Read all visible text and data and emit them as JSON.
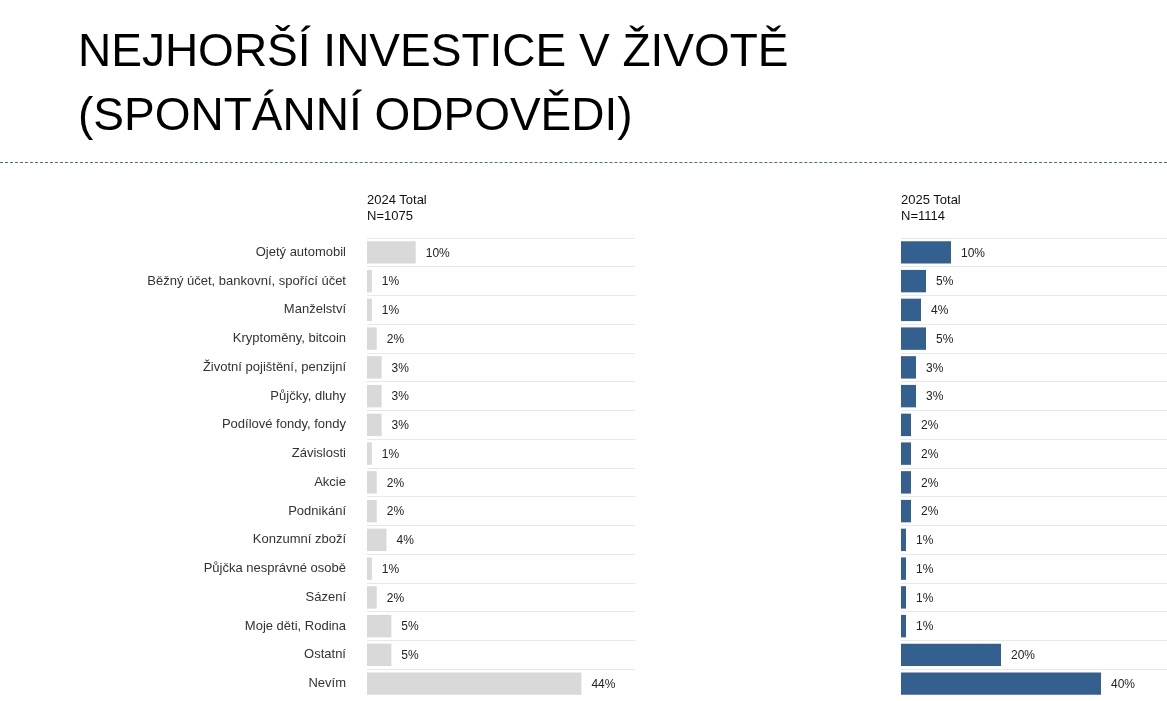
{
  "chart_data": [
    {
      "type": "bar",
      "orientation": "horizontal",
      "title": "NEJHORŠÍ INVESTICE V ŽIVOTĚ (SPONTÁNNÍ ODPOVĚDI)",
      "subtitle": "2024 Total",
      "annotations": [
        "N=1075"
      ],
      "categories": [
        "Ojetý automobil",
        "Běžný účet, bankovní, spořící účet",
        "Manželství",
        "Kryptoměny, bitcoin",
        "Životní pojištění, penzijní",
        "Půjčky, dluhy",
        "Podílové fondy, fondy",
        "Závislosti",
        "Akcie",
        "Podnikání",
        "Konzumní zboží",
        "Půjčka nesprávné osobě",
        "Sázení",
        "Moje děti, Rodina",
        "Ostatní",
        "Nevím"
      ],
      "values": [
        10,
        1,
        1,
        2,
        3,
        3,
        3,
        1,
        2,
        2,
        4,
        1,
        2,
        5,
        5,
        44
      ],
      "value_labels": [
        "10%",
        "1%",
        "1%",
        "2%",
        "3%",
        "3%",
        "3%",
        "1%",
        "2%",
        "2%",
        "4%",
        "1%",
        "2%",
        "5%",
        "5%",
        "44%"
      ],
      "color": "#d9d9d9",
      "xlim": [
        0,
        55
      ],
      "grid": "y",
      "legend": false
    },
    {
      "type": "bar",
      "orientation": "horizontal",
      "subtitle": "2025 Total",
      "annotations": [
        "N=1114"
      ],
      "categories": [
        null,
        null,
        null,
        null,
        null,
        null,
        null,
        null,
        null,
        null,
        null,
        null,
        null,
        null,
        null,
        null
      ],
      "values": [
        10,
        5,
        4,
        5,
        3,
        3,
        2,
        2,
        2,
        2,
        1,
        1,
        1,
        1,
        20,
        40
      ],
      "value_labels": [
        "10%",
        "5%",
        "4%",
        "5%",
        "3%",
        "3%",
        "2%",
        "2%",
        "2%",
        "2%",
        "1%",
        "1%",
        "1%",
        "1%",
        "20%",
        "40%"
      ],
      "color": "#34608f",
      "xlim": [
        0,
        55
      ],
      "grid": "y",
      "legend": false,
      "tick_labels": false
    }
  ]
}
